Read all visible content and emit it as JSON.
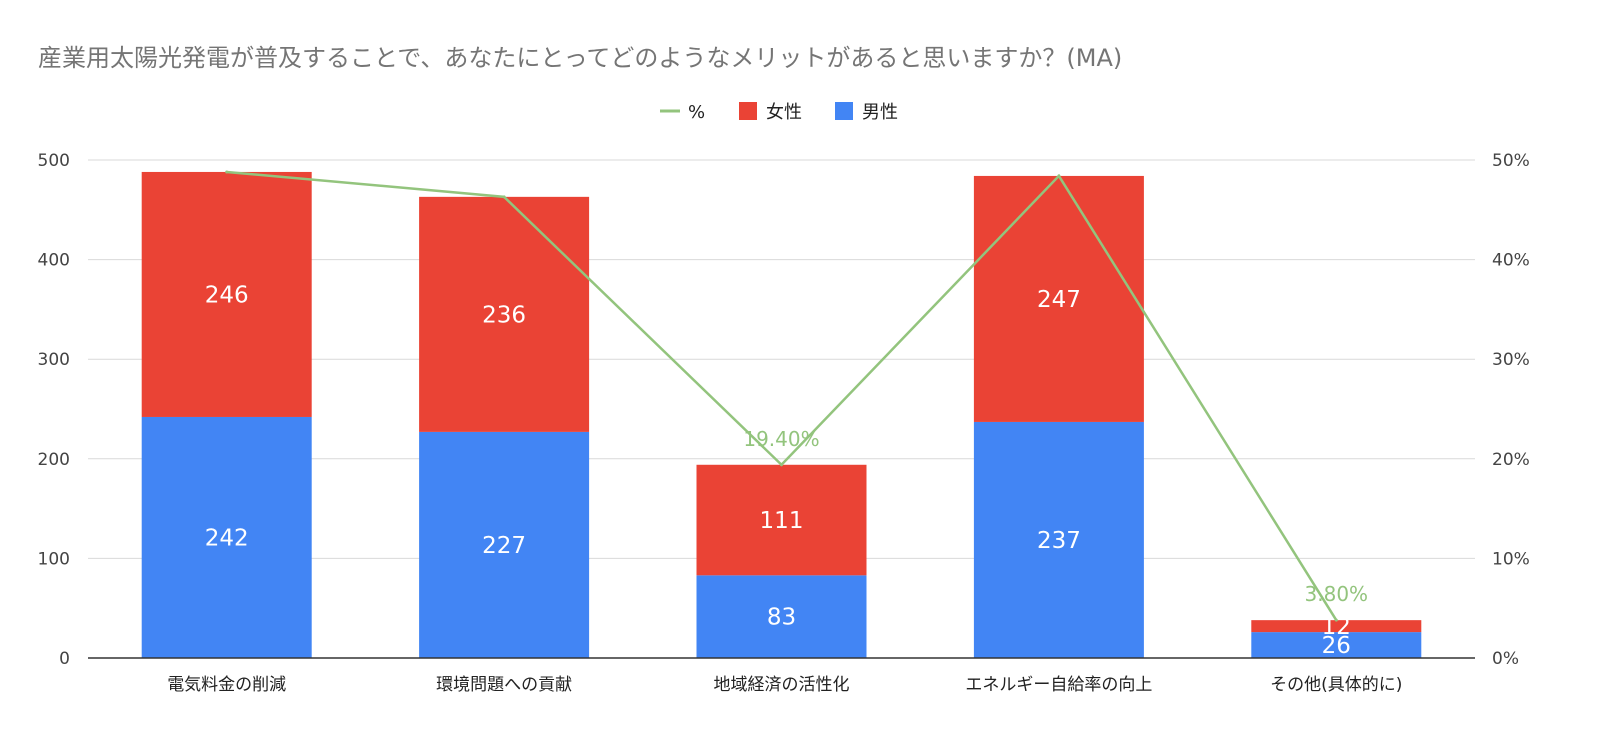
{
  "chart_data": {
    "type": "bar",
    "stacked": true,
    "title": "産業用太陽光発電が普及することで、あなたにとってどのようなメリットがあると思いますか？(MA)",
    "categories": [
      "電気料金の削減",
      "環境問題への貢献",
      "地域経済の活性化",
      "エネルギー自給率の向上",
      "その他(具体的に)"
    ],
    "series": [
      {
        "name": "男性",
        "color": "#4285f4",
        "values": [
          242,
          227,
          83,
          237,
          26
        ],
        "labels": [
          "242",
          "227",
          "83",
          "237",
          "26"
        ]
      },
      {
        "name": "女性",
        "color": "#ea4335",
        "values": [
          246,
          236,
          111,
          247,
          12
        ],
        "labels": [
          "246",
          "236",
          "111",
          "247",
          "12"
        ]
      }
    ],
    "line_series": {
      "name": "%",
      "color": "#93c47d",
      "axis": "right",
      "values": [
        48.8,
        46.3,
        19.4,
        48.4,
        3.8
      ],
      "point_labels": [
        "",
        "",
        "19.40%",
        "",
        "3.80%"
      ]
    },
    "legend": {
      "position": "top",
      "items": [
        {
          "name": "%",
          "color": "#93c47d",
          "shape": "line"
        },
        {
          "name": "女性",
          "color": "#ea4335",
          "shape": "square"
        },
        {
          "name": "男性",
          "color": "#4285f4",
          "shape": "square"
        }
      ]
    },
    "y_left": {
      "min": 0,
      "max": 500,
      "ticks": [
        "0",
        "100",
        "200",
        "300",
        "400",
        "500"
      ]
    },
    "y_right": {
      "min": 0,
      "max": 50,
      "ticks": [
        "0%",
        "10%",
        "20%",
        "30%",
        "40%",
        "50%"
      ]
    },
    "grid": true
  }
}
